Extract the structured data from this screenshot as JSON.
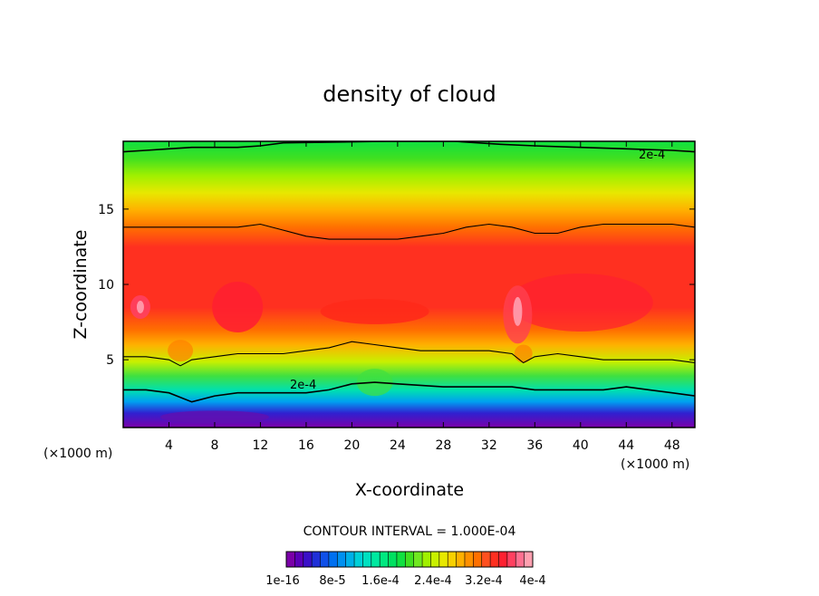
{
  "chart_data": {
    "type": "heatmap",
    "title": "density of cloud",
    "xlabel": "X-coordinate",
    "ylabel": "Z-coordinate",
    "x_unit": "(×1000 m)",
    "y_unit": "(×1000 m)",
    "xlim": [
      0,
      50
    ],
    "ylim": [
      0.5,
      19.5
    ],
    "x_ticks": [
      4,
      8,
      12,
      16,
      20,
      24,
      28,
      32,
      36,
      40,
      44,
      48
    ],
    "y_ticks": [
      5,
      10,
      15
    ],
    "contour_interval_label": "CONTOUR INTERVAL = 1.000E-04",
    "contour_labels": [
      "2e-4",
      "2e-4"
    ],
    "colorbar_labels": [
      "1e-16",
      "8e-5",
      "1.6e-4",
      "2.4e-4",
      "3.2e-4",
      "4e-4"
    ],
    "colorbar_colors": [
      "#7a00a8",
      "#5a00b8",
      "#3a10c8",
      "#2030d8",
      "#1050e8",
      "#0070f0",
      "#0090f0",
      "#00b0e8",
      "#00d0d8",
      "#00e0c0",
      "#00e8a0",
      "#00e880",
      "#00e060",
      "#10e040",
      "#40e020",
      "#70e820",
      "#a0f000",
      "#c8f000",
      "#e8e800",
      "#f8d000",
      "#ffb000",
      "#ff9000",
      "#ff7000",
      "#ff5020",
      "#ff3020",
      "#ff2030",
      "#ff4060",
      "#ff7090",
      "#ffa0b0"
    ],
    "series": [
      {
        "name": "contour level 2e-4 (lower)",
        "x": [
          0,
          2,
          4,
          6,
          8,
          10,
          12,
          14,
          16,
          18,
          20,
          22,
          24,
          26,
          28,
          30,
          32,
          34,
          36,
          38,
          40,
          42,
          44,
          46,
          48,
          50
        ],
        "y": [
          3.0,
          3.0,
          2.8,
          2.2,
          2.6,
          2.8,
          2.8,
          2.8,
          2.8,
          3.0,
          3.4,
          3.5,
          3.4,
          3.3,
          3.2,
          3.2,
          3.2,
          3.2,
          3.0,
          3.0,
          3.0,
          3.0,
          3.2,
          3.0,
          2.8,
          2.6
        ]
      },
      {
        "name": "contour level (mid-lower)",
        "x": [
          0,
          2,
          4,
          5,
          6,
          8,
          10,
          12,
          14,
          16,
          18,
          20,
          22,
          24,
          26,
          28,
          30,
          32,
          34,
          35,
          36,
          38,
          40,
          42,
          44,
          46,
          48,
          50
        ],
        "y": [
          5.2,
          5.2,
          5.0,
          4.6,
          5.0,
          5.2,
          5.4,
          5.4,
          5.4,
          5.6,
          5.8,
          6.2,
          6.0,
          5.8,
          5.6,
          5.6,
          5.6,
          5.6,
          5.4,
          4.8,
          5.2,
          5.4,
          5.2,
          5.0,
          5.0,
          5.0,
          5.0,
          4.8
        ]
      },
      {
        "name": "contour level (upper)",
        "x": [
          0,
          2,
          4,
          6,
          8,
          10,
          12,
          14,
          16,
          18,
          20,
          22,
          24,
          26,
          28,
          30,
          32,
          34,
          36,
          38,
          40,
          42,
          44,
          46,
          48,
          50
        ],
        "y": [
          13.8,
          13.8,
          13.8,
          13.8,
          13.8,
          13.8,
          14.0,
          13.6,
          13.2,
          13.0,
          13.0,
          13.0,
          13.0,
          13.2,
          13.4,
          13.8,
          14.0,
          13.8,
          13.4,
          13.4,
          13.8,
          14.0,
          14.0,
          14.0,
          14.0,
          13.8
        ]
      },
      {
        "name": "contour level 2e-4 (top)",
        "x": [
          0,
          2,
          4,
          6,
          8,
          10,
          12,
          14,
          23,
          29,
          31,
          33,
          36,
          40,
          44,
          48,
          50
        ],
        "y": [
          18.8,
          18.9,
          19.0,
          19.1,
          19.1,
          19.1,
          19.2,
          19.4,
          19.5,
          19.5,
          19.4,
          19.3,
          19.2,
          19.1,
          19.0,
          18.9,
          18.8
        ]
      }
    ]
  }
}
